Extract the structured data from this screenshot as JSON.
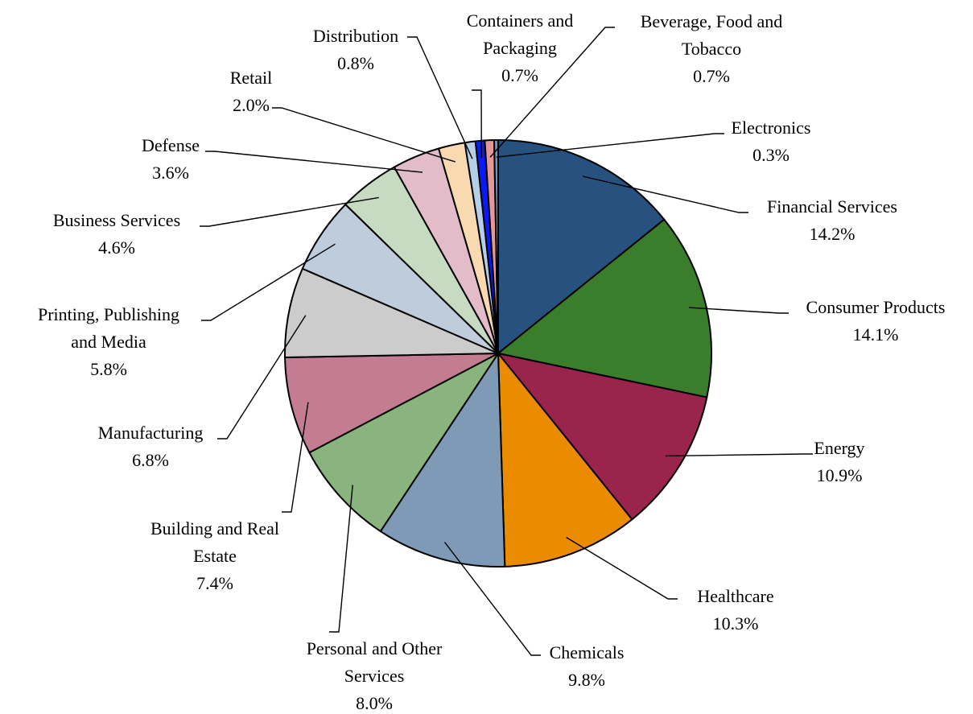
{
  "chart_data": {
    "type": "pie",
    "title": "",
    "start_angle_deg": 0,
    "direction": "clockwise",
    "slices": [
      {
        "label_lines": [
          "Financial Services"
        ],
        "label": "Financial Services",
        "value": 14.2,
        "display": "14.2%",
        "color": "#27527F"
      },
      {
        "label_lines": [
          "Consumer Products"
        ],
        "label": "Consumer Products",
        "value": 14.1,
        "display": "14.1%",
        "color": "#3A7D2B"
      },
      {
        "label_lines": [
          "Energy"
        ],
        "label": "Energy",
        "value": 10.9,
        "display": "10.9%",
        "color": "#9B244D"
      },
      {
        "label_lines": [
          "Healthcare"
        ],
        "label": "Healthcare",
        "value": 10.3,
        "display": "10.3%",
        "color": "#EB8C00"
      },
      {
        "label_lines": [
          "Chemicals"
        ],
        "label": "Chemicals",
        "value": 9.8,
        "display": "9.8%",
        "color": "#7F9AB7"
      },
      {
        "label_lines": [
          "Personal and Other",
          "Services"
        ],
        "label": "Personal and Other Services",
        "value": 8.0,
        "display": "8.0%",
        "color": "#8AB47D"
      },
      {
        "label_lines": [
          "Building and Real",
          "Estate"
        ],
        "label": "Building and Real Estate",
        "value": 7.4,
        "display": "7.4%",
        "color": "#C47C93"
      },
      {
        "label_lines": [
          "Manufacturing"
        ],
        "label": "Manufacturing",
        "value": 6.8,
        "display": "6.8%",
        "color": "#CCCCCC"
      },
      {
        "label_lines": [
          "Printing, Publishing",
          "and Media"
        ],
        "label": "Printing, Publishing and Media",
        "value": 5.8,
        "display": "5.8%",
        "color": "#BFCCDB"
      },
      {
        "label_lines": [
          "Business Services"
        ],
        "label": "Business Services",
        "value": 4.6,
        "display": "4.6%",
        "color": "#C7DBC2"
      },
      {
        "label_lines": [
          "Defense"
        ],
        "label": "Defense",
        "value": 3.6,
        "display": "3.6%",
        "color": "#E3BCCA"
      },
      {
        "label_lines": [
          "Retail"
        ],
        "label": "Retail",
        "value": 2.0,
        "display": "2.0%",
        "color": "#F8D9B0"
      },
      {
        "label_lines": [
          "Distribution"
        ],
        "label": "Distribution",
        "value": 0.8,
        "display": "0.8%",
        "color": "#B4CFE6"
      },
      {
        "label_lines": [
          "Containers and",
          "Packaging"
        ],
        "label": "Containers and Packaging",
        "value": 0.7,
        "display": "0.7%",
        "color": "#0A1AF2"
      },
      {
        "label_lines": [
          "Beverage, Food and",
          "Tobacco"
        ],
        "label": "Beverage, Food and Tobacco",
        "value": 0.7,
        "display": "0.7%",
        "color": "#E5989A"
      },
      {
        "label_lines": [
          "Electronics"
        ],
        "label": "Electronics",
        "value": 0.3,
        "display": "0.3%",
        "color": "#6E94C2"
      }
    ]
  }
}
